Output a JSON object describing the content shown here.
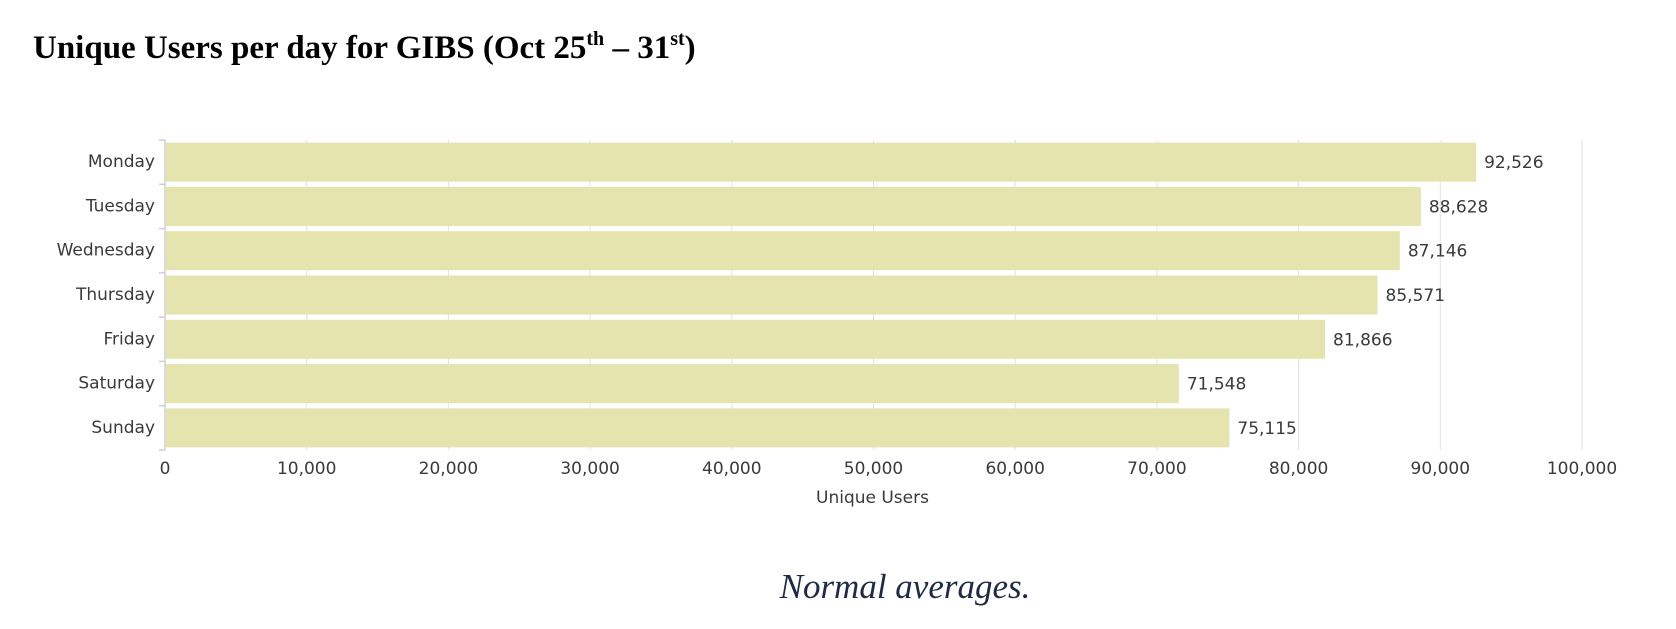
{
  "title": {
    "main": "Unique Users per day for GIBS (Oct 25",
    "sup1": "th",
    "mid": " – 31",
    "sup2": "st",
    "end": ")"
  },
  "caption": "Normal averages.",
  "colors": {
    "bar": "#e5e3ae",
    "grid": "#e2e2e2",
    "axis": "#cfcfcf",
    "text": "#3a3a3a",
    "caption": "#1f2a44"
  },
  "chart_data": {
    "type": "bar",
    "orientation": "horizontal",
    "categories": [
      "Monday",
      "Tuesday",
      "Wednesday",
      "Thursday",
      "Friday",
      "Saturday",
      "Sunday"
    ],
    "values": [
      92526,
      88628,
      87146,
      85571,
      81866,
      71548,
      75115
    ],
    "value_labels": [
      "92,526",
      "88,628",
      "87,146",
      "85,571",
      "81,866",
      "71,548",
      "75,115"
    ],
    "xlabel": "Unique Users",
    "ylabel": "",
    "xlim": [
      0,
      100000
    ],
    "ticks": [
      0,
      10000,
      20000,
      30000,
      40000,
      50000,
      60000,
      70000,
      80000,
      90000,
      100000
    ],
    "tick_labels": [
      "0",
      "10,000",
      "20,000",
      "30,000",
      "40,000",
      "50,000",
      "60,000",
      "70,000",
      "80,000",
      "90,000",
      "100,000"
    ],
    "grid": true,
    "legend": "none"
  }
}
